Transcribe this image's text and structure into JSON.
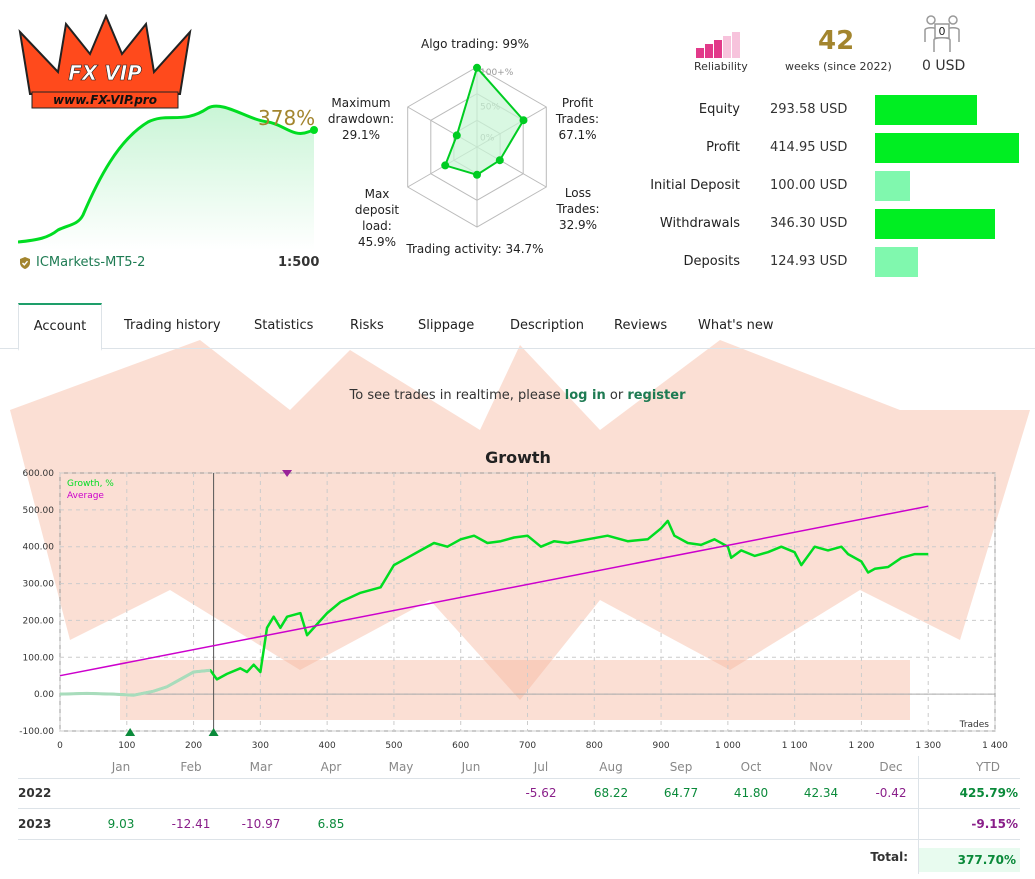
{
  "logo": {
    "site": "www.FX-VIP.pro",
    "letters": "FX VIP"
  },
  "account": {
    "growth_percent": "378%",
    "broker": "ICMarkets-MT5-2",
    "leverage": "1:500"
  },
  "radar": {
    "ticks": [
      "100+%",
      "50%",
      "0%"
    ],
    "axes": [
      {
        "label_lines": [
          "Algo trading: 99%"
        ],
        "value": 99
      },
      {
        "label_lines": [
          "Profit",
          "Trades:",
          "67.1%"
        ],
        "value": 67.1
      },
      {
        "label_lines": [
          "Loss",
          "Trades:",
          "32.9%"
        ],
        "value": 32.9
      },
      {
        "label_lines": [
          "Trading activity: 34.7%"
        ],
        "value": 34.7
      },
      {
        "label_lines": [
          "Max",
          "deposit",
          "load:",
          "45.9%"
        ],
        "value": 45.9
      },
      {
        "label_lines": [
          "Maximum",
          "drawdown:",
          "29.1%"
        ],
        "value": 29.1
      }
    ]
  },
  "header_stats": {
    "reliability_label": "Reliability",
    "weeks": "42",
    "weeks_label": "weeks (since 2022)",
    "subscribers": "0",
    "subscribers_funds": "0 USD"
  },
  "finance": [
    {
      "label": "Equity",
      "value": "293.58 USD",
      "amount": 293.58,
      "color": "#00ee22"
    },
    {
      "label": "Profit",
      "value": "414.95 USD",
      "amount": 414.95,
      "color": "#00ee22"
    },
    {
      "label": "Initial Deposit",
      "value": "100.00 USD",
      "amount": 100.0,
      "color": "#80f8ae"
    },
    {
      "label": "Withdrawals",
      "value": "346.30 USD",
      "amount": 346.3,
      "color": "#00ee22"
    },
    {
      "label": "Deposits",
      "value": "124.93 USD",
      "amount": 124.93,
      "color": "#80f8ae"
    }
  ],
  "tabs": [
    {
      "label": "Account",
      "active": true
    },
    {
      "label": "Trading history"
    },
    {
      "label": "Statistics"
    },
    {
      "label": "Risks"
    },
    {
      "label": "Slippage"
    },
    {
      "label": "Description"
    },
    {
      "label": "Reviews"
    },
    {
      "label": "What's new"
    }
  ],
  "realtime": {
    "prefix": "To see trades in realtime, please",
    "login": "log in",
    "middle": "or",
    "register": "register"
  },
  "chart_data": {
    "type": "line",
    "title": "Growth",
    "xlabel": "Trades",
    "legend": [
      "Growth, %",
      "Average"
    ],
    "legend_placement": "top-left",
    "grid": true,
    "xlim": [
      0,
      1400
    ],
    "ylim": [
      -100,
      600
    ],
    "x_ticks": [
      "0",
      "100",
      "200",
      "300",
      "400",
      "500",
      "600",
      "700",
      "800",
      "900",
      "1 000",
      "1 100",
      "1 200",
      "1 300",
      "1 400"
    ],
    "y_ticks": [
      "-100.00",
      "0.00",
      "100.00",
      "200.00",
      "300.00",
      "400.00",
      "500.00",
      "600.00"
    ],
    "series": [
      {
        "name": "Growth, %",
        "color": "#00dd22",
        "x": [
          0,
          40,
          80,
          110,
          140,
          160,
          180,
          200,
          225,
          235,
          250,
          270,
          280,
          290,
          300,
          310,
          320,
          330,
          340,
          360,
          370,
          390,
          400,
          420,
          450,
          480,
          500,
          520,
          540,
          560,
          580,
          600,
          620,
          640,
          660,
          680,
          700,
          720,
          740,
          760,
          790,
          820,
          850,
          880,
          900,
          910,
          920,
          940,
          960,
          980,
          1000,
          1005,
          1020,
          1040,
          1060,
          1080,
          1100,
          1110,
          1130,
          1150,
          1170,
          1180,
          1200,
          1210,
          1220,
          1240,
          1260,
          1280,
          1300
        ],
        "y": [
          0,
          2,
          0,
          -3,
          8,
          20,
          40,
          60,
          65,
          40,
          55,
          70,
          60,
          80,
          60,
          180,
          210,
          180,
          210,
          220,
          160,
          200,
          220,
          250,
          275,
          290,
          350,
          370,
          390,
          410,
          400,
          420,
          430,
          410,
          415,
          425,
          430,
          400,
          415,
          410,
          420,
          430,
          415,
          420,
          450,
          470,
          430,
          410,
          405,
          420,
          400,
          370,
          390,
          375,
          385,
          400,
          385,
          350,
          400,
          390,
          400,
          380,
          360,
          330,
          340,
          345,
          370,
          380,
          380
        ]
      },
      {
        "name": "Average",
        "color": "#cc00cc",
        "x": [
          0,
          1300
        ],
        "y": [
          50,
          510
        ]
      }
    ]
  },
  "yearly": {
    "months": [
      "Jan",
      "Feb",
      "Mar",
      "Apr",
      "May",
      "Jun",
      "Jul",
      "Aug",
      "Sep",
      "Oct",
      "Nov",
      "Dec"
    ],
    "ytd_label": "YTD",
    "rows": [
      {
        "year": "2022",
        "values": [
          "",
          "",
          "",
          "",
          "",
          "",
          "-5.62",
          "68.22",
          "64.77",
          "41.80",
          "42.34",
          "-0.42"
        ],
        "ytd": "425.79%"
      },
      {
        "year": "2023",
        "values": [
          "9.03",
          "-12.41",
          "-10.97",
          "6.85",
          "",
          "",
          "",
          "",
          "",
          "",
          "",
          ""
        ],
        "ytd": "-9.15%"
      }
    ],
    "total_label": "Total:",
    "total_value": "377.70%"
  }
}
